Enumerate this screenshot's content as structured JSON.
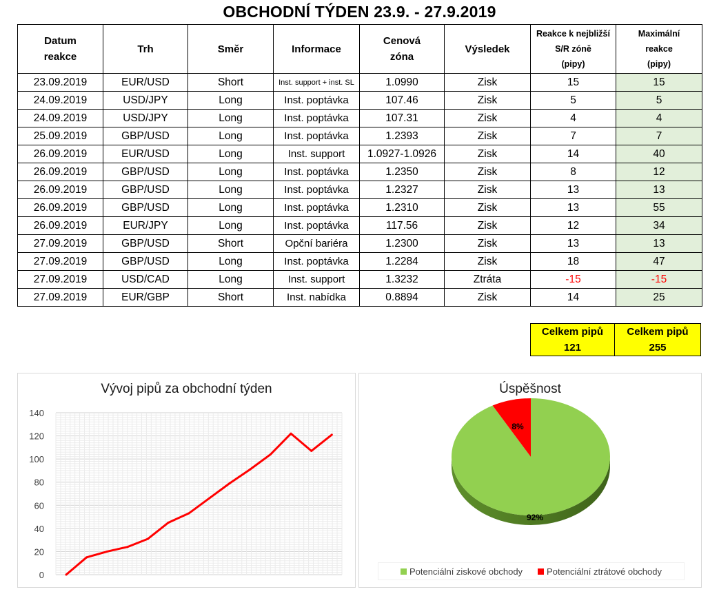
{
  "title": "OBCHODNÍ TÝDEN 23.9. - 27.9.2019",
  "table": {
    "headers": {
      "date": [
        "Datum",
        "reakce"
      ],
      "market": "Trh",
      "direction": "Směr",
      "info": "Informace",
      "zone": [
        "Cenová",
        "zóna"
      ],
      "result": "Výsledek",
      "reaction": [
        "Reakce k nejbližší",
        "S/R zóně",
        "(pipy)"
      ],
      "max": [
        "Maximální",
        "reakce",
        "(pipy)"
      ]
    },
    "rows": [
      {
        "date": "23.09.2019",
        "market": "EUR/USD",
        "direction": "Short",
        "info": "Inst. support + inst. SL",
        "zone": "1.0990",
        "result": "Zisk",
        "reaction": "15",
        "max": "15"
      },
      {
        "date": "24.09.2019",
        "market": "USD/JPY",
        "direction": "Long",
        "info": "Inst. poptávka",
        "zone": "107.46",
        "result": "Zisk",
        "reaction": "5",
        "max": "5"
      },
      {
        "date": "24.09.2019",
        "market": "USD/JPY",
        "direction": "Long",
        "info": "Inst. poptávka",
        "zone": "107.31",
        "result": "Zisk",
        "reaction": "4",
        "max": "4"
      },
      {
        "date": "25.09.2019",
        "market": "GBP/USD",
        "direction": "Long",
        "info": "Inst. poptávka",
        "zone": "1.2393",
        "result": "Zisk",
        "reaction": "7",
        "max": "7"
      },
      {
        "date": "26.09.2019",
        "market": "EUR/USD",
        "direction": "Long",
        "info": "Inst. support",
        "zone": "1.0927-1.0926",
        "result": "Zisk",
        "reaction": "14",
        "max": "40"
      },
      {
        "date": "26.09.2019",
        "market": "GBP/USD",
        "direction": "Long",
        "info": "Inst. poptávka",
        "zone": "1.2350",
        "result": "Zisk",
        "reaction": "8",
        "max": "12"
      },
      {
        "date": "26.09.2019",
        "market": "GBP/USD",
        "direction": "Long",
        "info": "Inst. poptávka",
        "zone": "1.2327",
        "result": "Zisk",
        "reaction": "13",
        "max": "13"
      },
      {
        "date": "26.09.2019",
        "market": "GBP/USD",
        "direction": "Long",
        "info": "Inst. poptávka",
        "zone": "1.2310",
        "result": "Zisk",
        "reaction": "13",
        "max": "55"
      },
      {
        "date": "26.09.2019",
        "market": "EUR/JPY",
        "direction": "Long",
        "info": "Inst. poptávka",
        "zone": "117.56",
        "result": "Zisk",
        "reaction": "12",
        "max": "34"
      },
      {
        "date": "27.09.2019",
        "market": "GBP/USD",
        "direction": "Short",
        "info": "Opční bariéra",
        "zone": "1.2300",
        "result": "Zisk",
        "reaction": "13",
        "max": "13"
      },
      {
        "date": "27.09.2019",
        "market": "GBP/USD",
        "direction": "Long",
        "info": "Inst. poptávka",
        "zone": "1.2284",
        "result": "Zisk",
        "reaction": "18",
        "max": "47"
      },
      {
        "date": "27.09.2019",
        "market": "USD/CAD",
        "direction": "Long",
        "info": "Inst. support",
        "zone": "1.3232",
        "result": "Ztráta",
        "reaction": "-15",
        "max": "-15"
      },
      {
        "date": "27.09.2019",
        "market": "EUR/GBP",
        "direction": "Short",
        "info": "Inst. nabídka",
        "zone": "0.8894",
        "result": "Zisk",
        "reaction": "14",
        "max": "25"
      }
    ]
  },
  "totals": [
    {
      "label": "Celkem pipů",
      "value": "121"
    },
    {
      "label": "Celkem pipů",
      "value": "255"
    }
  ],
  "colors": {
    "line": "#ff0000",
    "win": "#92d050",
    "loss": "#ff0000",
    "total_bg": "#ffff00",
    "max_col_bg": "#e2efda"
  },
  "chart_data": [
    {
      "type": "line",
      "title": "Vývoj pipů za obchodní týden",
      "x": [
        0,
        1,
        2,
        3,
        4,
        5,
        6,
        7,
        8,
        9,
        10,
        11,
        12,
        13
      ],
      "series": [
        {
          "values": [
            0,
            15,
            20,
            24,
            31,
            45,
            53,
            66,
            79,
            91,
            104,
            122,
            107,
            121
          ]
        }
      ],
      "ylim": [
        0,
        140
      ],
      "yticks": [
        0,
        20,
        40,
        60,
        80,
        100,
        120,
        140
      ],
      "grid": true
    },
    {
      "type": "pie",
      "title": "Úspěšnost",
      "slices": [
        {
          "name": "Potenciální ziskové obchody",
          "value": 92,
          "label": "92%"
        },
        {
          "name": "Potenciální ztrátové obchody",
          "value": 8,
          "label": "8%"
        }
      ],
      "legend_position": "bottom"
    }
  ]
}
